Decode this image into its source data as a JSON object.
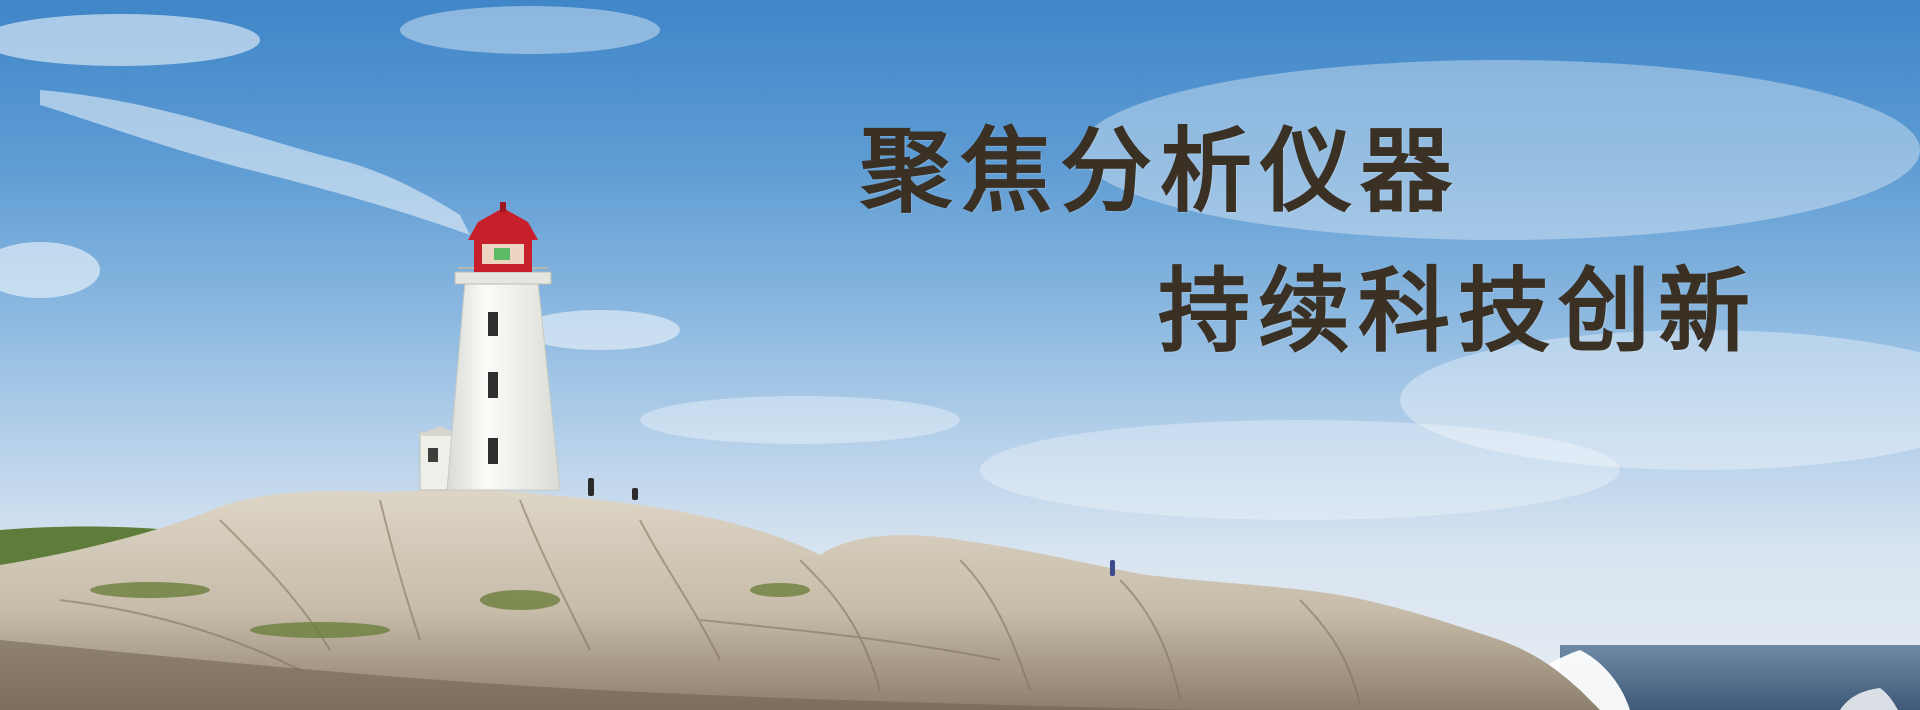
{
  "banner": {
    "line1": "聚焦分析仪器",
    "line2": "持续科技创新"
  },
  "colors": {
    "sky_top": "#3f86c8",
    "sky_bottom": "#e7edf4",
    "slogan_text": "#3a3124",
    "lighthouse_red": "#c8202b",
    "lighthouse_white": "#f4f4f2",
    "rock": "#cfc6b6",
    "sea": "#4f6d8d"
  },
  "icons": {
    "lighthouse": "lighthouse-icon"
  }
}
